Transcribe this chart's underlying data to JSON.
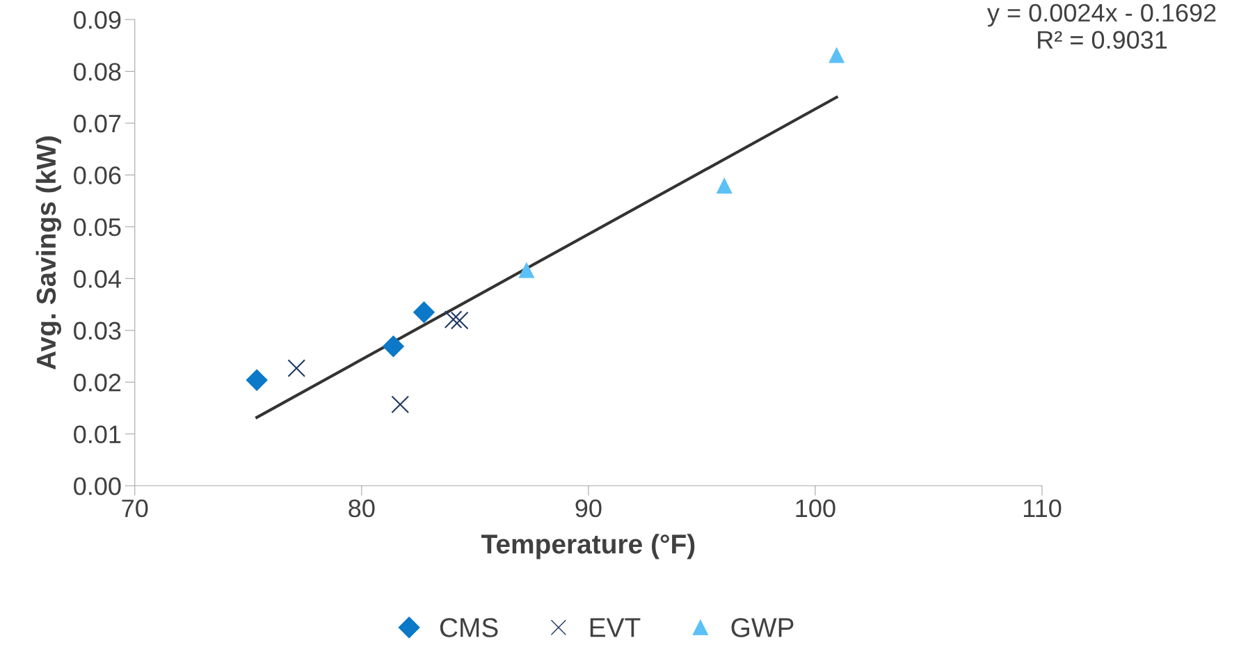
{
  "chart_data": {
    "type": "scatter",
    "xlabel": "Temperature (°F)",
    "ylabel": "Avg. Savings (kW)",
    "xlim": [
      70,
      110
    ],
    "xticks": [
      70,
      80,
      90,
      100,
      110
    ],
    "ylim": [
      0,
      0.09
    ],
    "yticks": [
      {
        "value": 0,
        "label": "0.00"
      },
      {
        "value": 0.01,
        "label": "0.01"
      },
      {
        "value": 0.02,
        "label": "0.02"
      },
      {
        "value": 0.03,
        "label": "0.03"
      },
      {
        "value": 0.04,
        "label": "0.04"
      },
      {
        "value": 0.05,
        "label": "0.05"
      },
      {
        "value": 0.06,
        "label": "0.06"
      },
      {
        "value": 0.07,
        "label": "0.07"
      },
      {
        "value": 0.08,
        "label": "0.08"
      },
      {
        "value": 0.09,
        "label": "0.09"
      }
    ],
    "grid": false,
    "legend": "bottom",
    "series": [
      {
        "name": "CMS",
        "color": "#0b78c8",
        "marker": "diamond",
        "x": [
          75.38,
          81.4,
          82.75
        ],
        "values": [
          0.0204,
          0.0269,
          0.0335
        ]
      },
      {
        "name": "EVT",
        "color": "#1f3864",
        "marker": "cross",
        "x": [
          77.13,
          81.7,
          84.04,
          84.32
        ],
        "values": [
          0.0227,
          0.0157,
          0.0321,
          0.0319
        ]
      },
      {
        "name": "GWP",
        "color": "#5bc0f5",
        "marker": "triangle",
        "x": [
          87.27,
          95.99,
          100.94
        ],
        "values": [
          0.0416,
          0.0579,
          0.0831
        ]
      },
      {
        "type": "line",
        "color": "#333333",
        "marker": "none",
        "x": [
          75.38,
          100.94
        ],
        "values": [
          0.0132,
          0.075
        ]
      }
    ],
    "annotations": [
      "y = 0.0024x - 0.1692\nR² = 0.9031"
    ]
  }
}
